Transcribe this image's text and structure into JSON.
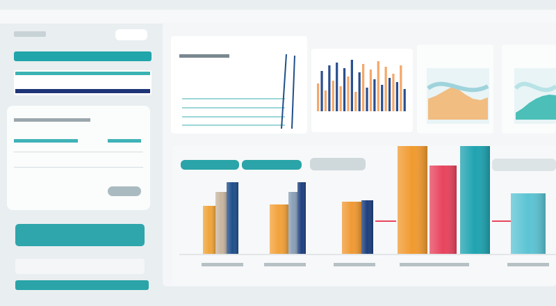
{
  "bar_groups": [
    {
      "values": [
        69,
        89,
        103
      ],
      "colors": [
        "#f0a53a",
        "#c9b6a0",
        "#1f4f8a"
      ]
    },
    {
      "values": [
        71,
        89,
        103
      ],
      "colors": [
        "#f2a23a",
        "#8aa0b8",
        "#1e3f80"
      ]
    },
    {
      "values": [
        75,
        77
      ],
      "colors": [
        "#f09a35",
        "#1d3f7d"
      ]
    },
    {
      "values": [
        155,
        127,
        155
      ],
      "colors": [
        "#f19a30",
        "#e8445e",
        "#1fa3b0"
      ]
    },
    {
      "values": [
        87
      ],
      "colors": [
        "#5cc4d4"
      ]
    }
  ],
  "mini_bars": {
    "values": [
      40,
      58,
      30,
      66,
      44,
      70,
      36,
      62,
      50,
      74,
      28,
      56,
      68,
      34,
      60,
      46,
      72,
      38,
      64,
      48,
      54,
      42,
      66,
      32
    ],
    "colors": [
      "#f4a86a",
      "#2b4f8f"
    ]
  },
  "area_charts": [
    {
      "values": [
        30,
        34,
        40,
        46,
        44,
        36,
        30,
        28,
        32
      ],
      "colors": [
        "#f2b36b",
        "#9fd3dc"
      ]
    },
    {
      "values": [
        10,
        16,
        24,
        30,
        34,
        36,
        35
      ],
      "colors": [
        "#2fb5ad",
        "#b8e3e6"
      ]
    }
  ]
}
